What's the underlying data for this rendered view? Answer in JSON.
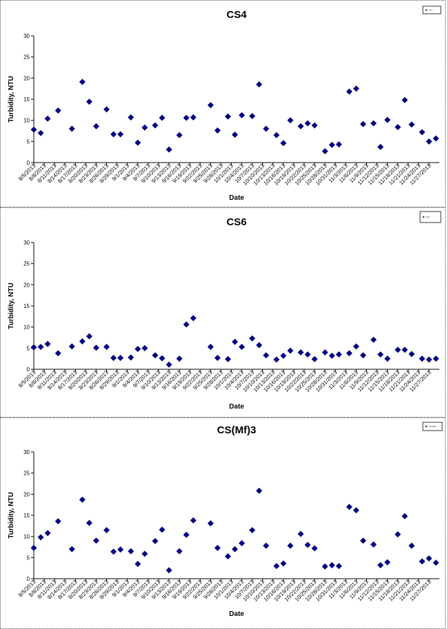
{
  "chart_data": [
    {
      "type": "scatter",
      "title": "CS4",
      "xlabel": "Date",
      "ylabel": "Turbidity, NTU",
      "ylim": [
        0,
        30
      ],
      "yticks": [
        0,
        5,
        10,
        15,
        20,
        25,
        30
      ],
      "x_tick_labels": [
        "8/5/2013",
        "8/8/2013",
        "8/11/2013",
        "8/14/2013",
        "8/17/2013",
        "8/20/2013",
        "8/23/2013",
        "8/26/2013",
        "8/29/2013",
        "9/1/2013",
        "9/4/2013",
        "9/7/2013",
        "9/10/2013",
        "9/13/2013",
        "9/16/2013",
        "9/19/2013",
        "9/22/2013",
        "9/25/2013",
        "9/28/2013",
        "10/1/2013",
        "10/4/2013",
        "10/7/2013",
        "10/10/2013",
        "10/13/2013",
        "10/16/2013",
        "10/19/2013",
        "10/22/2013",
        "10/25/2013",
        "10/28/2013",
        "10/31/2013",
        "11/3/2013",
        "11/6/2013",
        "11/9/2013",
        "11/12/2013",
        "11/15/2013",
        "11/18/2013",
        "11/21/2013",
        "11/24/2013",
        "11/27/2013"
      ],
      "legend": {
        "position": "top-right",
        "entries": [
          "CS4"
        ]
      },
      "grid": false,
      "color": "#000080",
      "series": [
        {
          "name": "CS4",
          "x": [
            "8/5/2013",
            "8/7/2013",
            "8/9/2013",
            "8/12/2013",
            "8/16/2013",
            "8/19/2013",
            "8/21/2013",
            "8/23/2013",
            "8/26/2013",
            "8/28/2013",
            "8/30/2013",
            "9/2/2013",
            "9/4/2013",
            "9/6/2013",
            "9/9/2013",
            "9/11/2013",
            "9/13/2013",
            "9/16/2013",
            "9/18/2013",
            "9/20/2013",
            "9/25/2013",
            "9/27/2013",
            "9/30/2013",
            "10/2/2013",
            "10/4/2013",
            "10/7/2013",
            "10/9/2013",
            "10/11/2013",
            "10/14/2013",
            "10/16/2013",
            "10/18/2013",
            "10/21/2013",
            "10/23/2013",
            "10/25/2013",
            "10/28/2013",
            "10/30/2013",
            "11/1/2013",
            "11/4/2013",
            "11/6/2013",
            "11/8/2013",
            "11/11/2013",
            "11/13/2013",
            "11/15/2013",
            "11/18/2013",
            "11/20/2013",
            "11/22/2013",
            "11/25/2013",
            "11/27/2013",
            "11/29/2013"
          ],
          "y": [
            7.8,
            7.0,
            10.4,
            12.3,
            8.0,
            19.1,
            14.4,
            8.6,
            12.6,
            6.7,
            6.7,
            10.7,
            4.7,
            8.3,
            8.8,
            10.6,
            3.1,
            6.5,
            10.6,
            10.7,
            13.6,
            7.6,
            10.9,
            6.6,
            11.2,
            11.0,
            18.5,
            8.0,
            6.5,
            4.6,
            10.0,
            8.6,
            9.3,
            8.8,
            2.7,
            4.2,
            4.3,
            16.8,
            17.5,
            9.1,
            9.3,
            3.7,
            10.1,
            8.4,
            14.8,
            9.0,
            7.2,
            5.0,
            5.7
          ]
        }
      ]
    },
    {
      "type": "scatter",
      "title": "CS6",
      "xlabel": "Date",
      "ylabel": "Turbidity, NTU",
      "ylim": [
        0,
        30
      ],
      "yticks": [
        0,
        5,
        10,
        15,
        20,
        25,
        30
      ],
      "x_tick_labels": [
        "8/5/2013",
        "8/8/2013",
        "8/11/2013",
        "8/14/2013",
        "8/17/2013",
        "8/20/2013",
        "8/23/2013",
        "8/26/2013",
        "8/29/2013",
        "9/1/2013",
        "9/4/2013",
        "9/7/2013",
        "9/10/2013",
        "9/13/2013",
        "9/16/2013",
        "9/19/2013",
        "9/22/2013",
        "9/25/2013",
        "9/28/2013",
        "10/1/2013",
        "10/4/2013",
        "10/7/2013",
        "10/10/2013",
        "10/13/2013",
        "10/16/2013",
        "10/19/2013",
        "10/22/2013",
        "10/25/2013",
        "10/28/2013",
        "10/31/2013",
        "11/3/2013",
        "11/6/2013",
        "11/9/2013",
        "11/12/2013",
        "11/15/2013",
        "11/18/2013",
        "11/21/2013",
        "11/24/2013",
        "11/27/2013"
      ],
      "legend": {
        "position": "top-right",
        "entries": [
          "CS6"
        ]
      },
      "grid": false,
      "color": "#000080",
      "series": [
        {
          "name": "CS6",
          "x": [
            "8/5/2013",
            "8/7/2013",
            "8/9/2013",
            "8/12/2013",
            "8/16/2013",
            "8/19/2013",
            "8/21/2013",
            "8/23/2013",
            "8/26/2013",
            "8/28/2013",
            "8/30/2013",
            "9/2/2013",
            "9/4/2013",
            "9/6/2013",
            "9/9/2013",
            "9/11/2013",
            "9/13/2013",
            "9/16/2013",
            "9/18/2013",
            "9/20/2013",
            "9/25/2013",
            "9/27/2013",
            "9/30/2013",
            "10/2/2013",
            "10/4/2013",
            "10/7/2013",
            "10/9/2013",
            "10/11/2013",
            "10/14/2013",
            "10/16/2013",
            "10/18/2013",
            "10/21/2013",
            "10/23/2013",
            "10/25/2013",
            "10/28/2013",
            "10/30/2013",
            "11/1/2013",
            "11/4/2013",
            "11/6/2013",
            "11/8/2013",
            "11/11/2013",
            "11/13/2013",
            "11/15/2013",
            "11/18/2013",
            "11/20/2013",
            "11/22/2013",
            "11/25/2013",
            "11/27/2013",
            "11/29/2013"
          ],
          "y": [
            5.2,
            5.3,
            6.0,
            3.8,
            5.4,
            6.6,
            7.8,
            5.1,
            5.3,
            2.7,
            2.7,
            2.8,
            4.8,
            5.0,
            3.3,
            2.6,
            1.1,
            2.5,
            10.6,
            12.1,
            5.3,
            2.7,
            2.4,
            6.5,
            5.3,
            7.3,
            5.7,
            3.3,
            2.3,
            3.2,
            4.4,
            4.0,
            3.5,
            2.4,
            4.0,
            3.2,
            3.5,
            3.8,
            5.4,
            3.3,
            7.0,
            3.5,
            2.5,
            4.6,
            4.6,
            3.6,
            2.5,
            2.3,
            2.5
          ]
        }
      ]
    },
    {
      "type": "scatter",
      "title": "CS(Mf)3",
      "xlabel": "Date",
      "ylabel": "Turbidity, NTU",
      "ylim": [
        0,
        30
      ],
      "yticks": [
        0,
        5,
        10,
        15,
        20,
        25,
        30
      ],
      "x_tick_labels": [
        "8/5/2013",
        "8/8/2013",
        "8/11/2013",
        "8/14/2013",
        "8/17/2013",
        "8/20/2013",
        "8/23/2013",
        "8/26/2013",
        "8/29/2013",
        "9/1/2013",
        "9/4/2013",
        "9/7/2013",
        "9/10/2013",
        "9/13/2013",
        "9/16/2013",
        "9/19/2013",
        "9/22/2013",
        "9/25/2013",
        "9/28/2013",
        "10/1/2013",
        "10/4/2013",
        "10/7/2013",
        "10/10/2013",
        "10/13/2013",
        "10/16/2013",
        "10/19/2013",
        "10/22/2013",
        "10/25/2013",
        "10/28/2013",
        "10/31/2013",
        "11/3/2013",
        "11/6/2013",
        "11/9/2013",
        "11/12/2013",
        "11/15/2013",
        "11/18/2013",
        "11/21/2013",
        "11/24/2013",
        "11/27/2013"
      ],
      "legend": {
        "position": "top-right",
        "entries": [
          "CS(Mf)3"
        ]
      },
      "grid": false,
      "color": "#000080",
      "series": [
        {
          "name": "CS(Mf)3",
          "x": [
            "8/5/2013",
            "8/7/2013",
            "8/9/2013",
            "8/12/2013",
            "8/16/2013",
            "8/19/2013",
            "8/21/2013",
            "8/23/2013",
            "8/26/2013",
            "8/28/2013",
            "8/30/2013",
            "9/2/2013",
            "9/4/2013",
            "9/6/2013",
            "9/9/2013",
            "9/11/2013",
            "9/13/2013",
            "9/16/2013",
            "9/18/2013",
            "9/20/2013",
            "9/25/2013",
            "9/27/2013",
            "9/30/2013",
            "10/2/2013",
            "10/4/2013",
            "10/7/2013",
            "10/9/2013",
            "10/11/2013",
            "10/14/2013",
            "10/16/2013",
            "10/18/2013",
            "10/21/2013",
            "10/23/2013",
            "10/25/2013",
            "10/28/2013",
            "10/30/2013",
            "11/1/2013",
            "11/4/2013",
            "11/6/2013",
            "11/8/2013",
            "11/11/2013",
            "11/13/2013",
            "11/15/2013",
            "11/18/2013",
            "11/20/2013",
            "11/22/2013",
            "11/25/2013",
            "11/27/2013",
            "11/29/2013"
          ],
          "y": [
            7.3,
            9.8,
            10.8,
            13.6,
            7.0,
            18.7,
            13.2,
            9.0,
            11.5,
            6.4,
            6.9,
            6.5,
            3.5,
            5.9,
            8.9,
            11.6,
            2.0,
            6.5,
            10.4,
            13.8,
            13.1,
            7.3,
            5.3,
            7.0,
            8.4,
            11.5,
            20.8,
            7.8,
            3.0,
            3.6,
            7.8,
            10.6,
            8.0,
            7.2,
            2.9,
            3.2,
            3.0,
            17.0,
            16.2,
            9.0,
            8.1,
            3.2,
            3.9,
            10.5,
            14.8,
            7.8,
            4.1,
            4.8,
            3.8
          ]
        }
      ]
    }
  ]
}
